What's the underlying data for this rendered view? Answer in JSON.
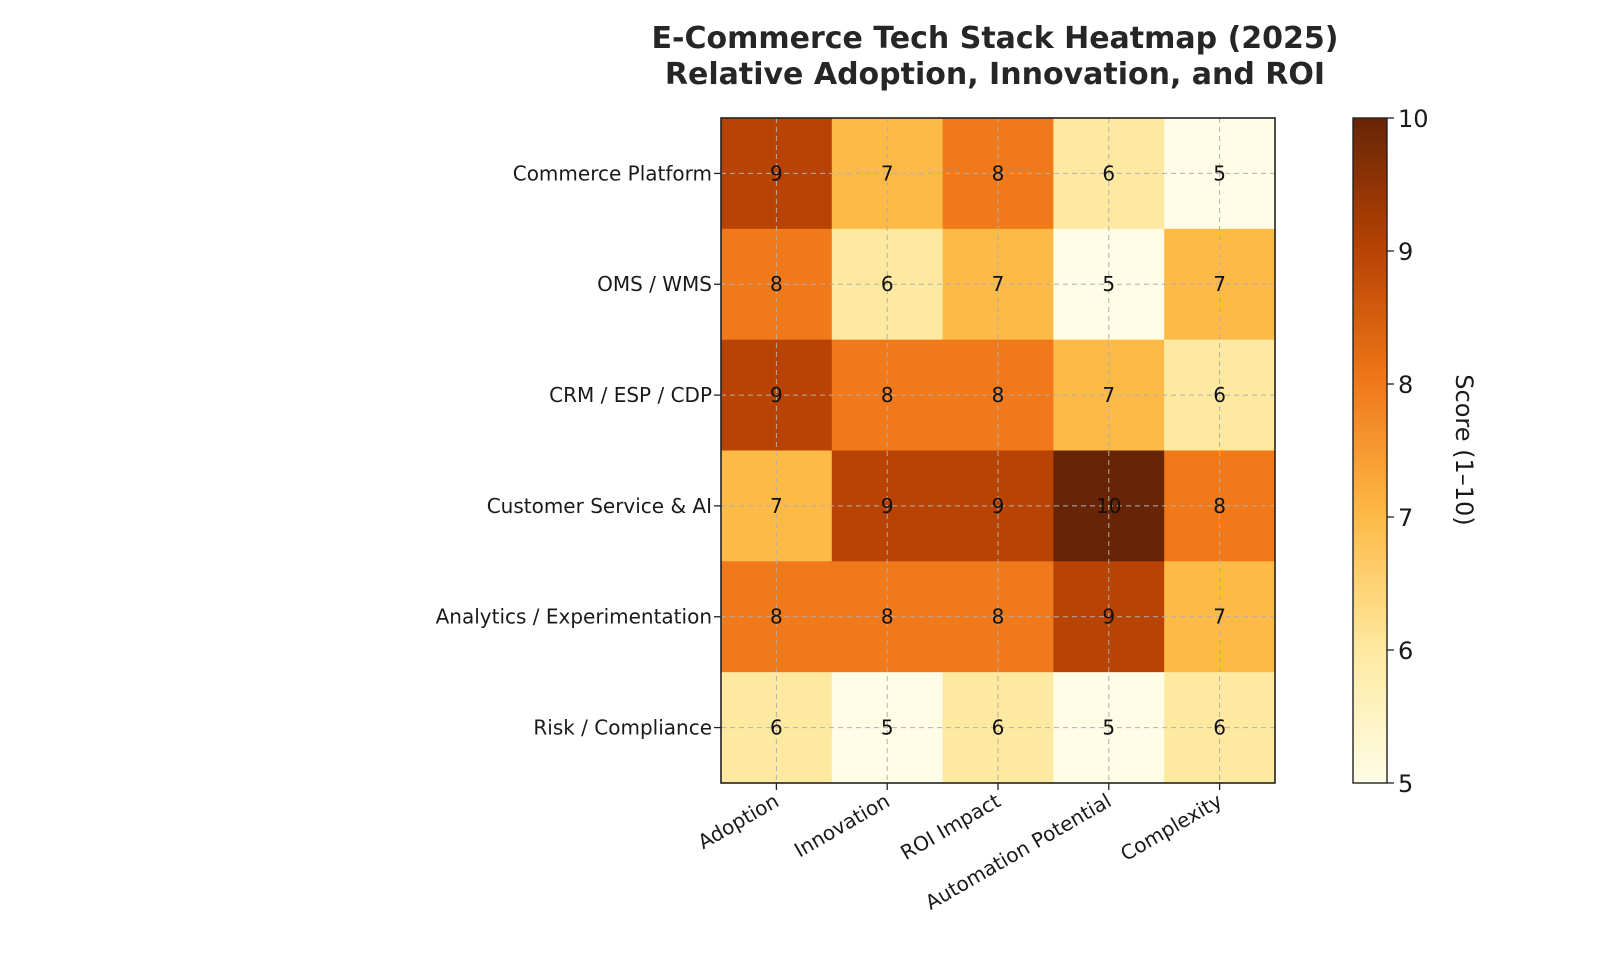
{
  "chart_data": {
    "type": "heatmap",
    "title_lines": [
      "E-Commerce Tech Stack Heatmap (2025)",
      "Relative Adoption, Innovation, and ROI"
    ],
    "rows": [
      "Commerce Platform",
      "OMS / WMS",
      "CRM / ESP / CDP",
      "Customer Service & AI",
      "Analytics / Experimentation",
      "Risk / Compliance"
    ],
    "columns": [
      "Adoption",
      "Innovation",
      "ROI Impact",
      "Automation Potential",
      "Complexity"
    ],
    "values": [
      [
        9,
        7,
        8,
        6,
        5
      ],
      [
        8,
        6,
        7,
        5,
        7
      ],
      [
        9,
        8,
        8,
        7,
        6
      ],
      [
        7,
        9,
        9,
        10,
        8
      ],
      [
        8,
        8,
        8,
        9,
        7
      ],
      [
        6,
        5,
        6,
        5,
        6
      ]
    ],
    "colorbar": {
      "label": "Score (1–10)",
      "min": 5,
      "max": 10,
      "ticks": [
        5,
        6,
        7,
        8,
        9,
        10
      ]
    },
    "colormap": {
      "5": "#fffde6",
      "6": "#fee9a0",
      "7": "#fdba47",
      "8": "#f07919",
      "9": "#b84304",
      "10": "#672506"
    },
    "grid": true
  }
}
